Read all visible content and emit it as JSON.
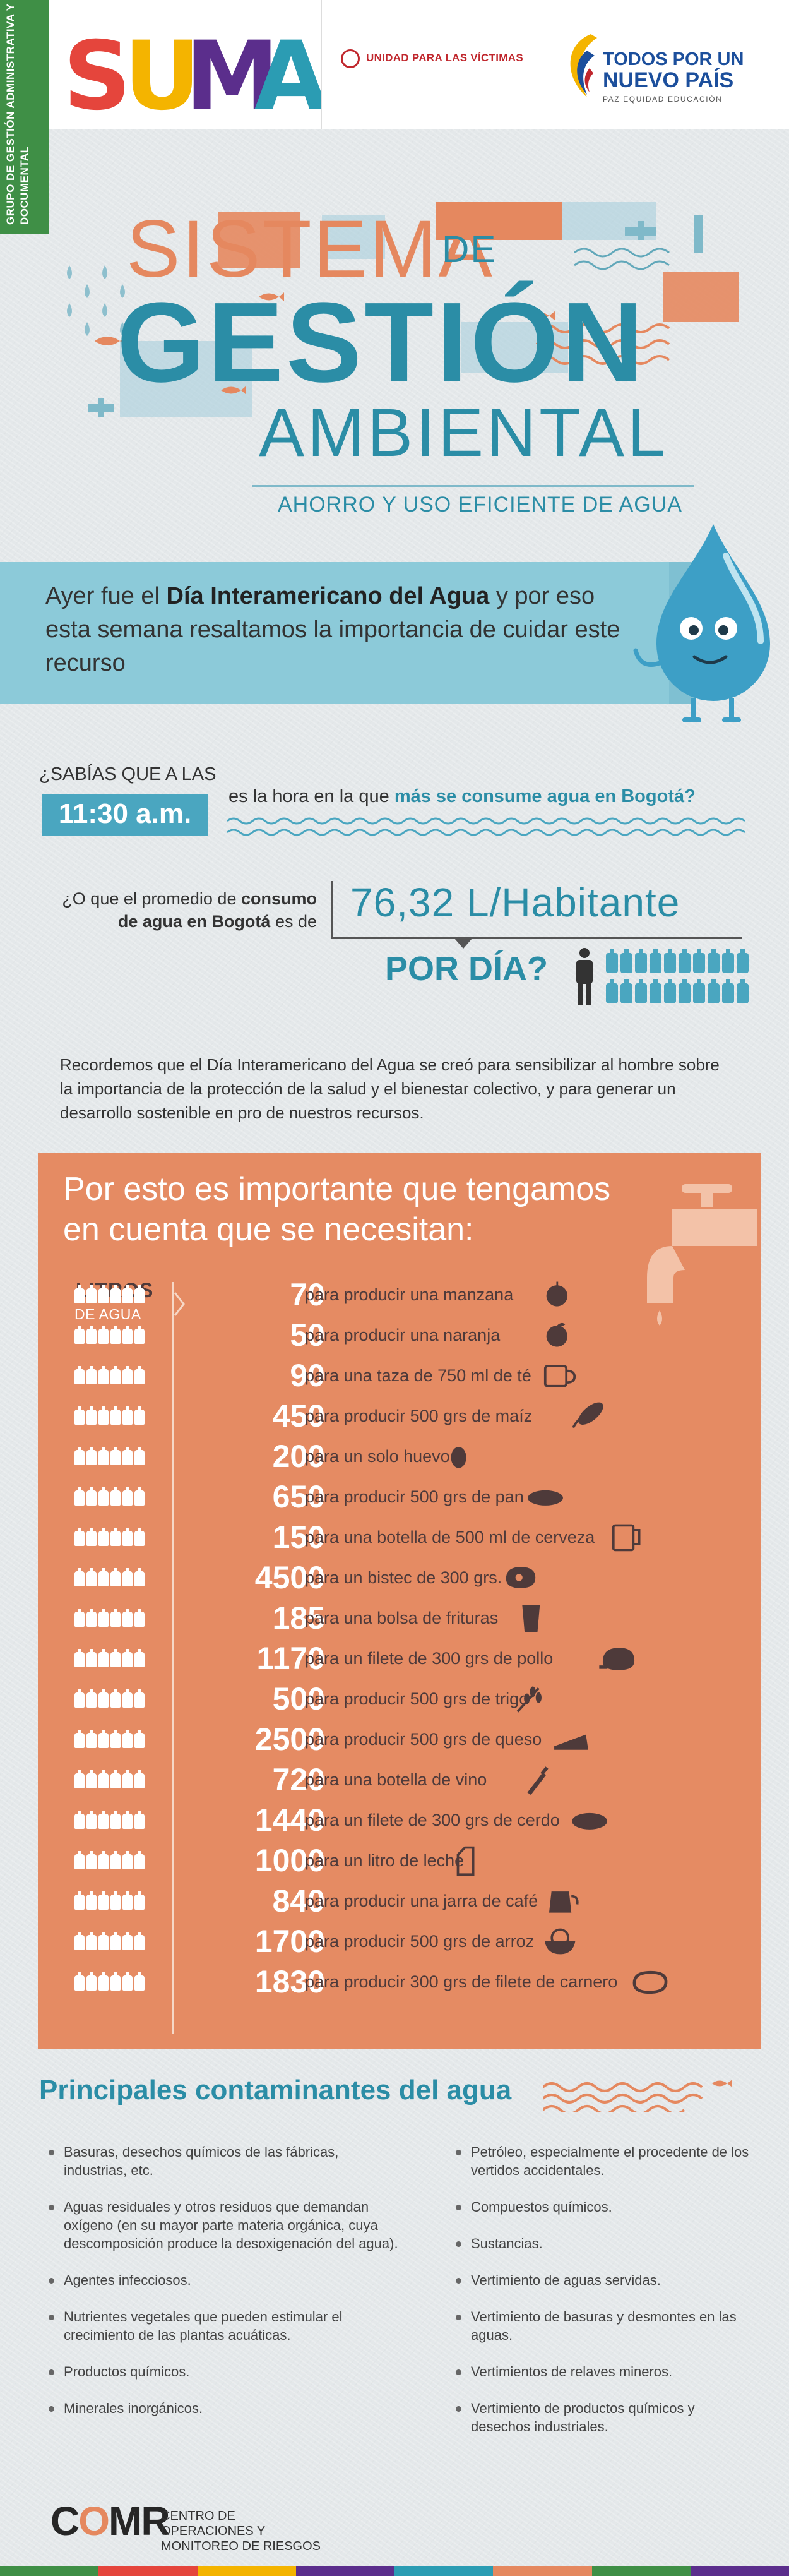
{
  "header": {
    "side_tab": "Grupo de gestión administrativa y documental",
    "suma_letters": [
      "S",
      "U",
      "M",
      "A"
    ],
    "suma_colors": [
      "#e5453c",
      "#f4b400",
      "#5b2e8c",
      "#2b9cb3"
    ],
    "victimas_label": "UNIDAD PARA LAS VÍCTIMAS",
    "tpn_line1": "TODOS POR UN",
    "tpn_line2": "NUEVO PAÍS",
    "tpn_sub": "PAZ   EQUIDAD   EDUCACIÓN"
  },
  "title": {
    "line1": "SISTEMA",
    "de": "DE",
    "line2": "GESTIÓN",
    "line3": "AMBIENTAL",
    "subtitle": "AHORRO Y USO EFICIENTE DE AGUA"
  },
  "banner": {
    "pre": "Ayer fue el ",
    "bold": "Día Interamericano del Agua",
    "post": " y por eso esta semana resaltamos la importancia de cuidar este recurso"
  },
  "facts": {
    "q1_prefix": "¿SABÍAS QUE A LAS",
    "q1_time": "11:30 a.m.",
    "q1_answer_pre": "es la hora en la que ",
    "q1_answer_bold": "más se consume agua en Bogotá?",
    "q2_pre": "¿O que el promedio de ",
    "q2_bold": "consumo de agua en Bogotá",
    "q2_post": " es de",
    "q2_value": "76,32 L/Habitante",
    "q2_per_day": "POR DÍA?"
  },
  "recordemos": "Recordemos que el Día Interamericano del Agua se creó para sensibilizar al hombre sobre la importancia de la protección de la salud y el bienestar colectivo, y para generar un desarrollo sostenible en pro de nuestros recursos.",
  "panel": {
    "title": "Por esto es importante que tengamos en cuenta que se necesitan:",
    "litros_label": "LITROS",
    "litros_sub": "DE AGUA",
    "rows": [
      {
        "num": "70",
        "text": "para producir una manzana",
        "icon": "apple-icon"
      },
      {
        "num": "50",
        "text": "para producir una naranja",
        "icon": "orange-icon"
      },
      {
        "num": "90",
        "text": "para una taza de 750 ml de té",
        "icon": "tea-cup-icon"
      },
      {
        "num": "450",
        "text": "para producir 500 grs de maíz",
        "icon": "corn-icon"
      },
      {
        "num": "200",
        "text": "para un solo huevo",
        "icon": "egg-icon"
      },
      {
        "num": "650",
        "text": "para producir 500 grs de pan",
        "icon": "bread-icon"
      },
      {
        "num": "150",
        "text": "para una botella de 500 ml de cerveza",
        "icon": "beer-mug-icon"
      },
      {
        "num": "4500",
        "text": "para un bistec de 300 grs.",
        "icon": "steak-icon"
      },
      {
        "num": "185",
        "text": "para una bolsa de frituras",
        "icon": "chips-bag-icon"
      },
      {
        "num": "1170",
        "text": "para un filete de 300 grs de pollo",
        "icon": "chicken-icon"
      },
      {
        "num": "500",
        "text": "para producir 500 grs de trigo",
        "icon": "wheat-icon"
      },
      {
        "num": "2500",
        "text": "para producir 500 grs de queso",
        "icon": "cheese-icon"
      },
      {
        "num": "720",
        "text": "para una botella de vino",
        "icon": "wine-bottle-icon"
      },
      {
        "num": "1440",
        "text": "para un filete de 300 grs de cerdo",
        "icon": "pork-icon"
      },
      {
        "num": "1000",
        "text": "para un litro de leche",
        "icon": "milk-carton-icon"
      },
      {
        "num": "840",
        "text": "para producir una jarra de café",
        "icon": "coffee-pot-icon"
      },
      {
        "num": "1700",
        "text": "para producir 500 grs de arroz",
        "icon": "rice-bowl-icon"
      },
      {
        "num": "1830",
        "text": "para producir 300 grs de filete de carnero",
        "icon": "lamb-steak-icon"
      }
    ]
  },
  "contaminantes": {
    "title": "Principales contaminantes del agua",
    "left": [
      "Basuras, desechos químicos de las fábricas, industrias, etc.",
      "Aguas residuales y otros residuos que demandan oxígeno (en su mayor parte materia orgánica, cuya descomposición produce la desoxigenación del agua).",
      "Agentes infecciosos.",
      "Nutrientes vegetales que pueden estimular el crecimiento de las plantas acuáticas.",
      "Productos químicos.",
      "Minerales inorgánicos."
    ],
    "right": [
      "Petróleo, especialmente el procedente de los vertidos accidentales.",
      "Compuestos químicos.",
      "Sustancias.",
      "Vertimiento de aguas servidas.",
      "Vertimiento de basuras y desmontes en las aguas.",
      "Vertimientos de relaves mineros.",
      "Vertimiento de productos químicos y desechos industriales."
    ]
  },
  "footer": {
    "logo_pre": "C",
    "logo_o": "O",
    "logo_post": "MR",
    "text": "CENTRO DE OPERACIONES Y MONITOREO DE RIESGOS",
    "bar_colors": [
      "#3f8f46",
      "#e5453c",
      "#f4b400",
      "#5b2e8c",
      "#2b9cb3",
      "#e5885f",
      "#3f8f46",
      "#5b2e8c"
    ]
  }
}
